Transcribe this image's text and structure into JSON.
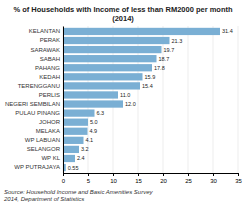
{
  "chart_data": {
    "type": "bar",
    "orientation": "horizontal",
    "title": "% of Households with Income of less than RM2000 per month (2014)",
    "categories": [
      "KELANTAN",
      "PERAK",
      "SARAWAK",
      "SABAH",
      "PAHANG",
      "KEDAH",
      "TERENGGANU",
      "PERLIS",
      "NEGERI SEMBILAN",
      "PULAU PINANG",
      "JOHOR",
      "MELAKA",
      "WP LABUAN",
      "SELANGOR",
      "WP KL",
      "WP PUTRAJAYA"
    ],
    "values": [
      31.4,
      21.3,
      19.7,
      18.7,
      17.8,
      15.9,
      15.4,
      11.0,
      12.0,
      6.3,
      5.0,
      4.9,
      4.1,
      3.2,
      2.4,
      0.55
    ],
    "value_labels": [
      "31.4",
      "21.3",
      "19.7",
      "18.7",
      "17.8",
      "15.9",
      "15.4",
      "11.0",
      "12.0",
      "6.3",
      "5.0",
      "4.9",
      "4.1",
      "3.2",
      "2.4",
      "0.55"
    ],
    "data_labels": true,
    "color": "#7aafd4",
    "xlim": [
      0,
      35
    ],
    "xticks": [
      0,
      5,
      10,
      15,
      20,
      25,
      30,
      35
    ],
    "grid": true,
    "annotations": [
      "Source: Household Income and Basic Amenities Survey",
      "2014, Department of Statistics"
    ]
  }
}
